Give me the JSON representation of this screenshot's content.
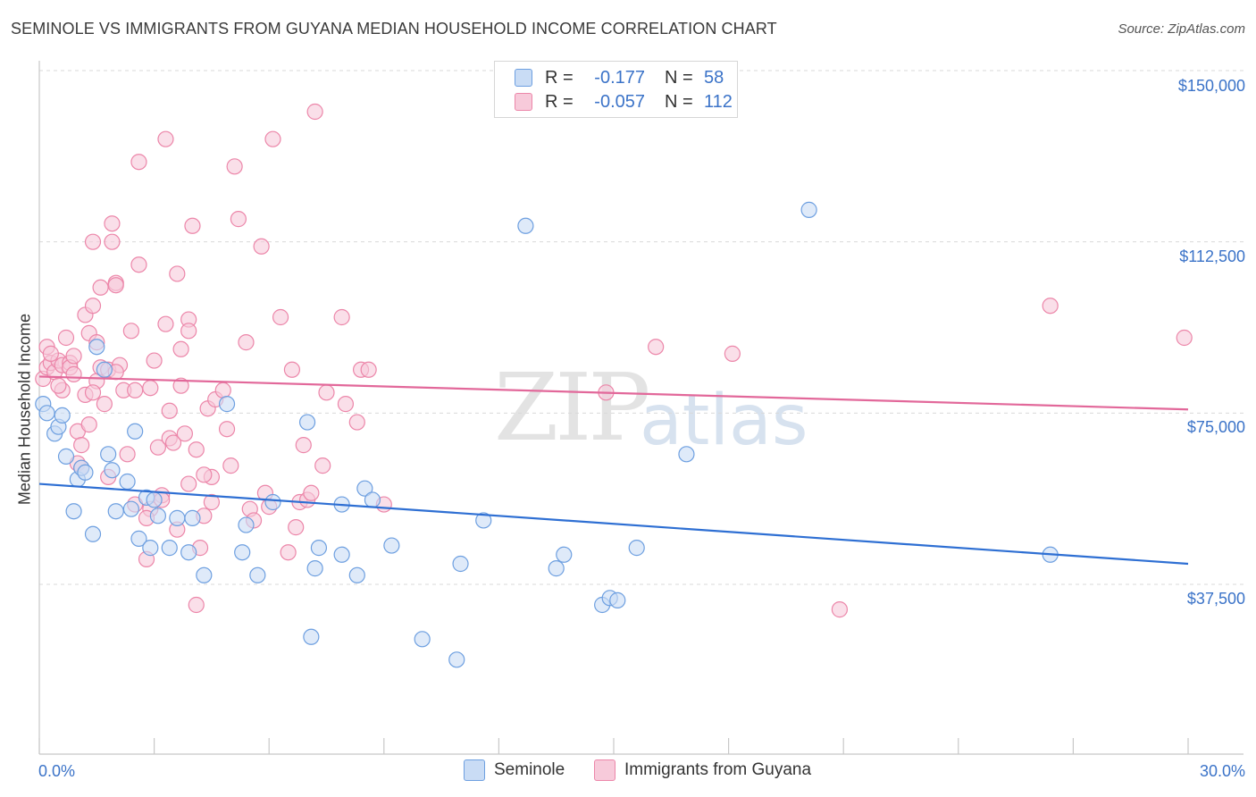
{
  "header": {
    "title": "SEMINOLE VS IMMIGRANTS FROM GUYANA MEDIAN HOUSEHOLD INCOME CORRELATION CHART",
    "source": "Source: ZipAtlas.com"
  },
  "watermark": {
    "zip": "ZIP",
    "atlas": "atlas"
  },
  "legend": {
    "rows": [
      {
        "r_label": "R =",
        "r_value": "-0.177",
        "n_label": "N =",
        "n_value": "58"
      },
      {
        "r_label": "R =",
        "r_value": "-0.057",
        "n_label": "N =",
        "n_value": "112"
      }
    ]
  },
  "colors": {
    "seminole_fill": "#c9dcf5",
    "seminole_stroke": "#6d9fe0",
    "seminole_line": "#2e6fd3",
    "guyana_fill": "#f7cada",
    "guyana_stroke": "#ec86a9",
    "guyana_line": "#e2689a",
    "tick_text": "#3b73c8",
    "grid": "#d9d9d9"
  },
  "chart_data": {
    "type": "scatter",
    "title": "SEMINOLE VS IMMIGRANTS FROM GUYANA MEDIAN HOUSEHOLD INCOME CORRELATION CHART",
    "xlabel": "",
    "ylabel": "Median Household Income",
    "xlim": [
      0,
      30
    ],
    "ylim": [
      0,
      155000
    ],
    "x_tick_labels": [
      "0.0%",
      "30.0%"
    ],
    "y_ticks": [
      37500,
      75000,
      112500,
      150000
    ],
    "y_tick_labels": [
      "$37,500",
      "$75,000",
      "$112,500",
      "$150,000"
    ],
    "grid": true,
    "legend_position": "bottom",
    "series": [
      {
        "name": "Seminole",
        "r": -0.177,
        "n": 58,
        "trend": [
          [
            0,
            59500
          ],
          [
            30,
            42000
          ]
        ],
        "points": [
          [
            0.1,
            77000
          ],
          [
            0.4,
            70500
          ],
          [
            0.5,
            72000
          ],
          [
            0.6,
            74500
          ],
          [
            0.7,
            65500
          ],
          [
            0.9,
            53500
          ],
          [
            1.0,
            60500
          ],
          [
            1.1,
            63000
          ],
          [
            1.2,
            62000
          ],
          [
            1.4,
            48500
          ],
          [
            1.5,
            89500
          ],
          [
            1.7,
            84500
          ],
          [
            1.8,
            66000
          ],
          [
            1.9,
            62500
          ],
          [
            2.0,
            53500
          ],
          [
            2.3,
            60000
          ],
          [
            2.4,
            54000
          ],
          [
            2.5,
            71000
          ],
          [
            2.6,
            47500
          ],
          [
            2.8,
            56500
          ],
          [
            2.9,
            45500
          ],
          [
            3.0,
            56000
          ],
          [
            3.1,
            52500
          ],
          [
            3.4,
            45500
          ],
          [
            3.6,
            52000
          ],
          [
            3.9,
            44500
          ],
          [
            4.0,
            52000
          ],
          [
            4.3,
            39500
          ],
          [
            4.9,
            77000
          ],
          [
            5.3,
            44500
          ],
          [
            5.4,
            50500
          ],
          [
            5.7,
            39500
          ],
          [
            6.1,
            55500
          ],
          [
            7.0,
            73000
          ],
          [
            7.1,
            26000
          ],
          [
            7.2,
            41000
          ],
          [
            7.3,
            45500
          ],
          [
            7.9,
            55000
          ],
          [
            7.9,
            44000
          ],
          [
            8.3,
            39500
          ],
          [
            8.5,
            58500
          ],
          [
            8.7,
            56000
          ],
          [
            9.2,
            46000
          ],
          [
            10.0,
            25500
          ],
          [
            10.9,
            21000
          ],
          [
            11.0,
            42000
          ],
          [
            11.6,
            51500
          ],
          [
            12.7,
            116000
          ],
          [
            13.5,
            41000
          ],
          [
            13.7,
            44000
          ],
          [
            14.7,
            33000
          ],
          [
            14.9,
            34500
          ],
          [
            15.1,
            34000
          ],
          [
            15.6,
            45500
          ],
          [
            16.9,
            66000
          ],
          [
            20.1,
            119500
          ],
          [
            26.4,
            44000
          ],
          [
            0.2,
            75000
          ]
        ]
      },
      {
        "name": "Immigrants from Guyana",
        "r": -0.057,
        "n": 112,
        "trend": [
          [
            0,
            83000
          ],
          [
            30,
            75800
          ]
        ],
        "points": [
          [
            0.1,
            82500
          ],
          [
            0.2,
            85000
          ],
          [
            0.2,
            89500
          ],
          [
            0.3,
            86000
          ],
          [
            0.4,
            84000
          ],
          [
            0.5,
            86500
          ],
          [
            0.6,
            85500
          ],
          [
            0.6,
            80000
          ],
          [
            0.7,
            91500
          ],
          [
            0.8,
            86000
          ],
          [
            0.8,
            85000
          ],
          [
            0.9,
            83500
          ],
          [
            1.0,
            71000
          ],
          [
            1.0,
            64000
          ],
          [
            1.1,
            63000
          ],
          [
            1.2,
            96500
          ],
          [
            1.2,
            79000
          ],
          [
            1.3,
            72500
          ],
          [
            1.3,
            92500
          ],
          [
            1.4,
            98500
          ],
          [
            1.4,
            112500
          ],
          [
            1.5,
            90500
          ],
          [
            1.5,
            82000
          ],
          [
            1.6,
            102500
          ],
          [
            1.6,
            85000
          ],
          [
            1.7,
            77000
          ],
          [
            1.8,
            84500
          ],
          [
            1.8,
            61000
          ],
          [
            1.9,
            116500
          ],
          [
            1.9,
            112500
          ],
          [
            2.0,
            103500
          ],
          [
            2.0,
            103000
          ],
          [
            2.1,
            85500
          ],
          [
            2.2,
            80000
          ],
          [
            2.3,
            66000
          ],
          [
            2.4,
            93000
          ],
          [
            2.5,
            80000
          ],
          [
            2.5,
            55000
          ],
          [
            2.6,
            130000
          ],
          [
            2.6,
            107500
          ],
          [
            2.8,
            43000
          ],
          [
            2.9,
            80500
          ],
          [
            2.9,
            54000
          ],
          [
            3.0,
            86500
          ],
          [
            3.1,
            67500
          ],
          [
            3.2,
            57000
          ],
          [
            3.2,
            56000
          ],
          [
            3.3,
            135000
          ],
          [
            3.3,
            94500
          ],
          [
            3.4,
            75500
          ],
          [
            3.4,
            69500
          ],
          [
            3.5,
            68500
          ],
          [
            3.6,
            105500
          ],
          [
            3.7,
            89000
          ],
          [
            3.7,
            81000
          ],
          [
            3.8,
            70500
          ],
          [
            3.9,
            95500
          ],
          [
            3.9,
            93000
          ],
          [
            4.0,
            116000
          ],
          [
            4.1,
            67000
          ],
          [
            4.2,
            45500
          ],
          [
            4.3,
            52500
          ],
          [
            4.4,
            76000
          ],
          [
            4.5,
            61000
          ],
          [
            4.6,
            78000
          ],
          [
            4.8,
            80000
          ],
          [
            4.9,
            71500
          ],
          [
            5.1,
            129000
          ],
          [
            5.2,
            117500
          ],
          [
            5.4,
            90500
          ],
          [
            5.5,
            54000
          ],
          [
            5.8,
            111500
          ],
          [
            5.9,
            57500
          ],
          [
            6.1,
            135000
          ],
          [
            6.3,
            96000
          ],
          [
            6.5,
            44500
          ],
          [
            6.6,
            84500
          ],
          [
            6.8,
            55500
          ],
          [
            6.9,
            68000
          ],
          [
            7.0,
            56000
          ],
          [
            7.2,
            141000
          ],
          [
            7.4,
            63500
          ],
          [
            7.5,
            79500
          ],
          [
            7.9,
            96000
          ],
          [
            8.0,
            77000
          ],
          [
            8.3,
            73000
          ],
          [
            8.4,
            84500
          ],
          [
            8.6,
            84500
          ],
          [
            9.0,
            55000
          ],
          [
            4.1,
            33000
          ],
          [
            14.8,
            79500
          ],
          [
            16.1,
            89500
          ],
          [
            18.1,
            88000
          ],
          [
            20.9,
            32000
          ],
          [
            26.4,
            98500
          ],
          [
            29.9,
            91500
          ],
          [
            0.3,
            88000
          ],
          [
            0.9,
            87500
          ],
          [
            1.4,
            79500
          ],
          [
            2.0,
            84000
          ],
          [
            3.9,
            59500
          ],
          [
            4.5,
            55500
          ],
          [
            5.0,
            63500
          ],
          [
            5.6,
            51500
          ],
          [
            6.0,
            54500
          ],
          [
            6.7,
            50000
          ],
          [
            7.1,
            57500
          ],
          [
            0.5,
            81000
          ],
          [
            1.1,
            68000
          ],
          [
            2.8,
            52000
          ],
          [
            3.6,
            49500
          ],
          [
            4.3,
            61500
          ]
        ]
      }
    ]
  },
  "bottom_legend": {
    "items": [
      {
        "label": "Seminole"
      },
      {
        "label": "Immigrants from Guyana"
      }
    ]
  }
}
